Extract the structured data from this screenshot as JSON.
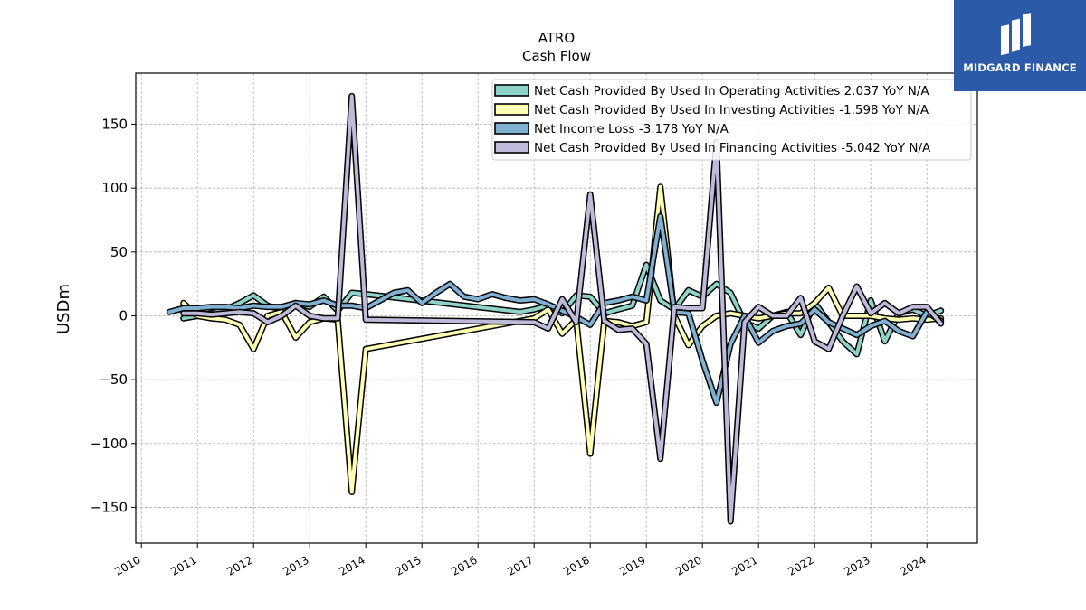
{
  "chart_data": {
    "type": "line",
    "title": "ATRO",
    "subtitle": "Cash Flow",
    "xlabel": "",
    "ylabel": "USDm",
    "xlim": [
      2009.9,
      2024.9
    ],
    "ylim": [
      -178,
      190
    ],
    "yticks": [
      -150,
      -100,
      -50,
      0,
      50,
      100,
      150
    ],
    "yticklabels": [
      "−150",
      "−100",
      "−50",
      "0",
      "50",
      "100",
      "150"
    ],
    "xticks": [
      2010,
      2011,
      2012,
      2013,
      2014,
      2015,
      2016,
      2017,
      2018,
      2019,
      2020,
      2021,
      2022,
      2023,
      2024
    ],
    "xticklabels": [
      "2010",
      "2011",
      "2012",
      "2013",
      "2014",
      "2015",
      "2016",
      "2017",
      "2018",
      "2019",
      "2020",
      "2021",
      "2022",
      "2023",
      "2024"
    ],
    "grid": true,
    "legend_position": "top-right",
    "series": [
      {
        "name": "Net Cash Provided By Used In Operating Activities  2.037 YoY N/A",
        "color": "#8dd3c7",
        "x": [
          2010.75,
          2011.0,
          2011.25,
          2011.5,
          2011.75,
          2012.0,
          2012.25,
          2012.5,
          2012.75,
          2013.0,
          2013.25,
          2013.5,
          2013.75,
          2014.0,
          2016.75,
          2017.0,
          2017.25,
          2017.5,
          2017.75,
          2018.0,
          2018.25,
          2018.5,
          2018.75,
          2019.0,
          2019.25,
          2019.5,
          2019.75,
          2020.0,
          2020.25,
          2020.5,
          2020.75,
          2021.0,
          2021.25,
          2021.5,
          2021.75,
          2022.0,
          2022.25,
          2022.5,
          2022.75,
          2023.0,
          2023.25,
          2023.5,
          2023.75,
          2024.0,
          2024.25
        ],
        "y": [
          -2,
          0,
          2,
          5,
          10,
          16,
          8,
          5,
          10,
          7,
          15,
          4,
          18,
          17,
          3,
          5,
          8,
          2,
          16,
          15,
          2,
          5,
          8,
          40,
          12,
          5,
          20,
          15,
          25,
          18,
          -5,
          -10,
          0,
          3,
          -15,
          10,
          -5,
          -20,
          -30,
          12,
          -20,
          2,
          5,
          0,
          4
        ]
      },
      {
        "name": "Net Cash Provided By Used In Investing Activities  -1.598 YoY N/A",
        "color": "#ffffb3",
        "x": [
          2010.75,
          2011.0,
          2011.25,
          2011.5,
          2011.75,
          2012.0,
          2012.25,
          2012.5,
          2012.75,
          2013.0,
          2013.25,
          2013.5,
          2013.75,
          2014.0,
          2017.0,
          2017.25,
          2017.5,
          2017.75,
          2018.0,
          2018.25,
          2018.5,
          2018.75,
          2019.0,
          2019.25,
          2019.5,
          2019.75,
          2020.0,
          2020.25,
          2020.5,
          2020.75,
          2021.0,
          2021.25,
          2021.5,
          2021.75,
          2022.0,
          2022.25,
          2022.5,
          2022.75,
          2023.0,
          2023.25,
          2023.5,
          2023.75,
          2024.0,
          2024.25
        ],
        "y": [
          10,
          0,
          -2,
          -3,
          -7,
          -26,
          0,
          3,
          -17,
          -5,
          -2,
          -3,
          -138,
          -26,
          -2,
          5,
          -14,
          -3,
          -108,
          -4,
          -5,
          -8,
          -5,
          101,
          0,
          -23,
          -8,
          0,
          2,
          0,
          -2,
          0,
          2,
          2,
          10,
          22,
          0,
          0,
          0,
          -2,
          -3,
          -2,
          -3,
          -2
        ]
      },
      {
        "name": "Net Income Loss  -3.178 YoY N/A",
        "color": "#80b1d3",
        "x": [
          2010.5,
          2010.75,
          2011.0,
          2011.25,
          2011.5,
          2011.75,
          2012.0,
          2012.25,
          2012.5,
          2012.75,
          2013.0,
          2013.25,
          2013.5,
          2013.75,
          2014.0,
          2014.25,
          2014.5,
          2014.75,
          2015.0,
          2015.25,
          2015.5,
          2015.75,
          2016.0,
          2016.25,
          2016.5,
          2016.75,
          2017.0,
          2017.25,
          2017.5,
          2017.75,
          2018.0,
          2018.25,
          2018.5,
          2018.75,
          2019.0,
          2019.25,
          2019.5,
          2019.75,
          2020.0,
          2020.25,
          2020.5,
          2020.75,
          2021.0,
          2021.25,
          2021.5,
          2021.75,
          2022.0,
          2022.25,
          2022.5,
          2022.75,
          2023.0,
          2023.25,
          2023.5,
          2023.75,
          2024.0,
          2024.25
        ],
        "y": [
          3,
          6,
          6,
          7,
          7,
          6,
          8,
          7,
          7,
          10,
          9,
          12,
          8,
          8,
          6,
          12,
          18,
          20,
          10,
          18,
          25,
          15,
          13,
          17,
          14,
          12,
          13,
          9,
          4,
          -1,
          -7,
          10,
          12,
          15,
          12,
          78,
          3,
          2,
          -35,
          -68,
          -22,
          0,
          -21,
          -12,
          -8,
          -6,
          5,
          -5,
          -10,
          -15,
          -8,
          -4,
          -12,
          -16,
          3,
          -4
        ]
      },
      {
        "name": "Net Cash Provided By Used In Financing Activities  -5.042 YoY N/A",
        "color": "#bebada",
        "x": [
          2010.75,
          2011.0,
          2011.25,
          2011.5,
          2011.75,
          2012.0,
          2012.25,
          2012.5,
          2012.75,
          2013.0,
          2013.25,
          2013.5,
          2013.75,
          2014.0,
          2017.0,
          2017.25,
          2017.5,
          2017.75,
          2018.0,
          2018.25,
          2018.5,
          2018.75,
          2019.0,
          2019.25,
          2019.5,
          2019.75,
          2020.0,
          2020.25,
          2020.5,
          2020.75,
          2021.0,
          2021.25,
          2021.5,
          2021.75,
          2022.0,
          2022.25,
          2022.5,
          2022.75,
          2023.0,
          2023.25,
          2023.5,
          2023.75,
          2024.0,
          2024.25
        ],
        "y": [
          2,
          2,
          1,
          2,
          3,
          2,
          -5,
          0,
          8,
          0,
          -2,
          -2,
          172,
          -3,
          -5,
          -10,
          13,
          -5,
          95,
          -4,
          -11,
          -10,
          -22,
          -112,
          7,
          6,
          6,
          136,
          -161,
          -5,
          7,
          0,
          0,
          14,
          -20,
          -26,
          0,
          23,
          2,
          10,
          2,
          7,
          7,
          -6
        ]
      }
    ]
  },
  "logo": {
    "text": "MIDGARD FINANCE",
    "background": "#2c5aa8"
  }
}
